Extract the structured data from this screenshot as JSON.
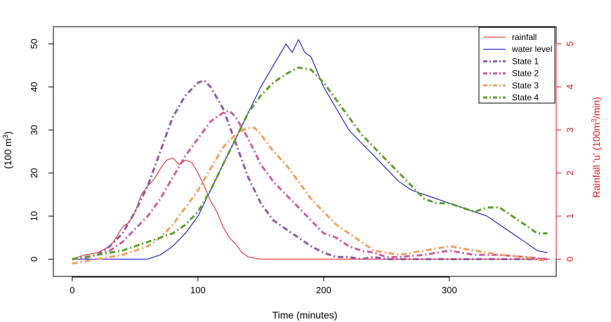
{
  "chart_data": {
    "type": "line",
    "xlabel": "Time (minutes)",
    "ylabel_left_main": "(100 m",
    "ylabel_left_sup": "3",
    "ylabel_left_end": ")",
    "ylabel_right_main": "Rainfall 'u' (100m",
    "ylabel_right_sup": "3",
    "ylabel_right_end": "/min)",
    "xlim": [
      -15,
      385
    ],
    "ylim_left": [
      -4,
      54
    ],
    "ylim_right": [
      -0.4,
      5.4
    ],
    "xticks": [
      0,
      100,
      200,
      300
    ],
    "yticks_left": [
      0,
      10,
      20,
      30,
      40,
      50
    ],
    "yticks_right": [
      0,
      1,
      2,
      3,
      4,
      5
    ],
    "colors": {
      "rainfall": "#e41a1c",
      "water_level": "#0000cc",
      "state1": "#8e5aa8",
      "state2": "#d05aa0",
      "state3": "#f4a05a",
      "state4": "#5aa02c",
      "right_axis": "#e41a1c"
    },
    "legend": {
      "position": "top-right",
      "entries": [
        "rainfall",
        "water level",
        "State 1",
        "State 2",
        "State 3",
        "State 4"
      ]
    },
    "series": [
      {
        "name": "rainfall",
        "axis": "right",
        "style": "solid",
        "x": [
          0,
          10,
          20,
          30,
          35,
          40,
          45,
          50,
          55,
          60,
          65,
          70,
          75,
          80,
          85,
          90,
          95,
          100,
          105,
          110,
          115,
          120,
          125,
          130,
          135,
          140,
          150,
          160,
          200,
          250,
          300,
          380
        ],
        "y": [
          0,
          0.1,
          0.15,
          0.3,
          0.5,
          0.75,
          0.85,
          1.1,
          1.5,
          1.7,
          1.85,
          2.1,
          2.3,
          2.35,
          2.2,
          2.3,
          2.25,
          2.0,
          1.7,
          1.35,
          1.1,
          0.75,
          0.5,
          0.35,
          0.15,
          0.05,
          0,
          0,
          0,
          0,
          0,
          0
        ]
      },
      {
        "name": "water level",
        "axis": "left",
        "style": "solid",
        "x": [
          0,
          30,
          60,
          70,
          80,
          90,
          100,
          110,
          120,
          130,
          140,
          150,
          160,
          170,
          175,
          180,
          185,
          190,
          200,
          210,
          220,
          230,
          240,
          250,
          260,
          270,
          280,
          290,
          300,
          310,
          320,
          330,
          340,
          350,
          360,
          370,
          378
        ],
        "y": [
          0,
          0,
          0,
          1,
          3,
          6,
          10,
          16,
          22,
          28,
          34,
          40,
          45,
          50,
          48,
          51,
          48,
          47,
          40,
          35,
          30,
          27,
          24,
          21,
          18,
          16,
          15,
          14,
          13,
          12,
          11,
          10,
          8,
          6,
          4,
          2,
          1.5
        ]
      },
      {
        "name": "State 1",
        "axis": "left",
        "style": "dashdot",
        "x": [
          0,
          10,
          20,
          30,
          40,
          50,
          60,
          70,
          80,
          90,
          100,
          105,
          110,
          120,
          130,
          140,
          150,
          160,
          170,
          180,
          190,
          200,
          210,
          220,
          230,
          240,
          250,
          260,
          280,
          300,
          320,
          340,
          360,
          378
        ],
        "y": [
          0,
          0.5,
          1,
          3,
          6,
          11,
          17,
          25,
          33,
          38,
          41,
          41.5,
          40,
          35,
          27,
          19,
          13,
          9,
          7,
          5,
          3,
          1.5,
          0.5,
          0.5,
          0,
          0.5,
          0,
          0,
          0,
          0,
          0,
          0,
          0,
          0
        ]
      },
      {
        "name": "State 2",
        "axis": "left",
        "style": "dashdot",
        "x": [
          0,
          10,
          20,
          30,
          40,
          50,
          60,
          70,
          80,
          90,
          100,
          110,
          120,
          125,
          130,
          140,
          150,
          160,
          170,
          180,
          190,
          200,
          210,
          220,
          230,
          240,
          250,
          260,
          280,
          300,
          320,
          340,
          360,
          378
        ],
        "y": [
          0,
          0.3,
          1,
          2,
          4,
          7,
          10,
          14,
          19,
          24,
          28,
          32,
          34,
          34.5,
          33,
          28,
          22,
          18,
          15,
          12,
          9,
          6,
          5,
          3,
          2,
          1.5,
          0.5,
          0.5,
          1,
          2,
          1,
          1,
          0.5,
          0
        ]
      },
      {
        "name": "State 3",
        "axis": "left",
        "style": "dashdot",
        "x": [
          0,
          10,
          20,
          30,
          40,
          50,
          60,
          70,
          80,
          90,
          100,
          110,
          120,
          130,
          140,
          145,
          150,
          160,
          170,
          180,
          190,
          200,
          210,
          220,
          230,
          240,
          250,
          260,
          280,
          300,
          320,
          340,
          360,
          378
        ],
        "y": [
          -1,
          -0.5,
          0,
          0.5,
          1,
          2,
          3,
          5,
          8,
          12,
          16,
          21,
          26,
          29,
          30.5,
          30.5,
          29,
          25,
          22,
          18,
          14,
          11,
          8,
          6,
          4,
          2,
          1.5,
          1,
          2,
          3,
          2,
          1,
          0.5,
          -0.5
        ]
      },
      {
        "name": "State 4",
        "axis": "left",
        "style": "dashdot",
        "x": [
          0,
          20,
          40,
          60,
          70,
          80,
          90,
          100,
          110,
          120,
          130,
          140,
          150,
          160,
          170,
          180,
          190,
          200,
          210,
          220,
          230,
          240,
          250,
          260,
          270,
          280,
          290,
          300,
          310,
          320,
          330,
          340,
          350,
          360,
          370,
          378
        ],
        "y": [
          0,
          1,
          2,
          4,
          5,
          6,
          8,
          11,
          16,
          22,
          28,
          34,
          38,
          41,
          43,
          44.5,
          44,
          41,
          37,
          33,
          29,
          26,
          23,
          20,
          17,
          14,
          13,
          13,
          12,
          11,
          12,
          12,
          10,
          8,
          6,
          6
        ]
      }
    ]
  }
}
